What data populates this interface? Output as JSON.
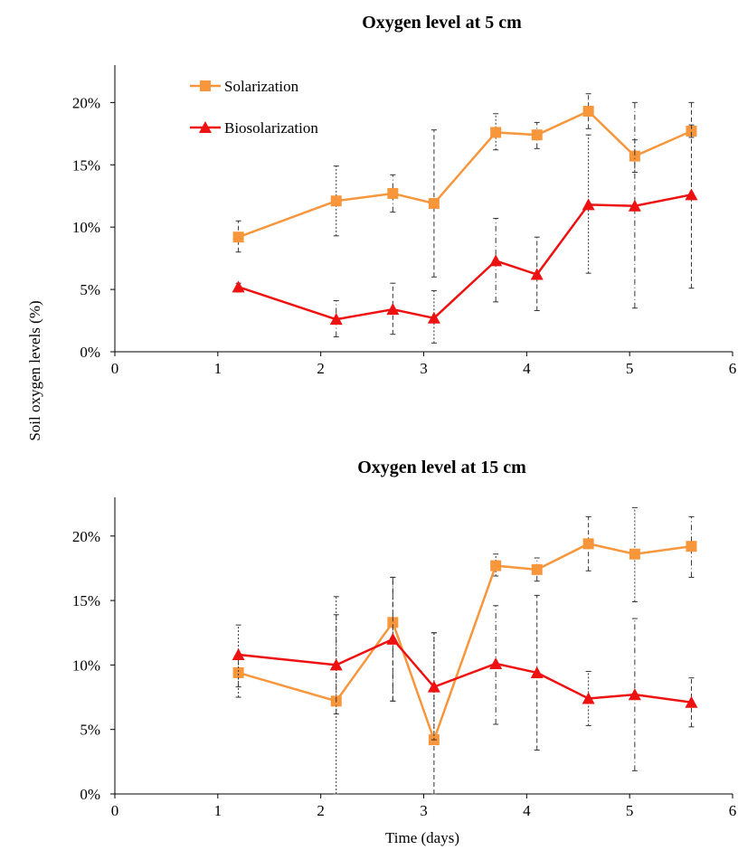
{
  "ylabel": "Soil oxygen levels (%)",
  "xlabel": "Time (days)",
  "legend": {
    "solarization": "Solarization",
    "biosolarization": "Biosolarization"
  },
  "colors": {
    "solarization": "#F7963B",
    "biosolarization": "#EE1111"
  },
  "chart_data": [
    {
      "type": "line",
      "title": "Oxygen level at 5 cm",
      "xlim": [
        0,
        6
      ],
      "ylim": [
        0,
        23
      ],
      "xticks": [
        "0",
        "1",
        "2",
        "3",
        "4",
        "5",
        "6"
      ],
      "yticks": [
        "0%",
        "5%",
        "10%",
        "15%",
        "20%"
      ],
      "legend_position": "top-left",
      "series": [
        {
          "name": "Solarization",
          "marker": "square",
          "x": [
            1.2,
            2.15,
            2.7,
            3.1,
            3.7,
            4.1,
            4.6,
            5.05,
            5.6
          ],
          "y": [
            9.2,
            12.1,
            12.7,
            11.9,
            17.6,
            17.4,
            19.3,
            15.7,
            17.7
          ],
          "err_low": [
            8.0,
            9.3,
            11.2,
            6.0,
            16.2,
            16.3,
            17.9,
            14.4,
            17.2
          ],
          "err_high": [
            10.5,
            14.9,
            14.2,
            17.8,
            19.1,
            18.4,
            20.7,
            17.0,
            18.2
          ]
        },
        {
          "name": "Biosolarization",
          "marker": "triangle",
          "x": [
            1.2,
            2.15,
            2.7,
            3.1,
            3.7,
            4.1,
            4.6,
            5.05,
            5.6
          ],
          "y": [
            5.2,
            2.6,
            3.4,
            2.7,
            7.3,
            6.2,
            11.8,
            11.7,
            12.6
          ],
          "err_low": [
            4.8,
            1.2,
            1.4,
            0.7,
            4.0,
            3.3,
            6.3,
            3.5,
            5.1
          ],
          "err_high": [
            5.5,
            4.1,
            5.5,
            4.9,
            10.7,
            9.2,
            17.4,
            20.0,
            20.0
          ]
        }
      ]
    },
    {
      "type": "line",
      "title": "Oxygen level at 15 cm",
      "xlim": [
        0,
        6
      ],
      "ylim": [
        0,
        23
      ],
      "xticks": [
        "0",
        "1",
        "2",
        "3",
        "4",
        "5",
        "6"
      ],
      "yticks": [
        "0%",
        "5%",
        "10%",
        "15%",
        "20%"
      ],
      "series": [
        {
          "name": "Solarization",
          "marker": "square",
          "x": [
            1.2,
            2.15,
            2.7,
            3.1,
            3.7,
            4.1,
            4.6,
            5.05,
            5.6
          ],
          "y": [
            9.4,
            7.2,
            13.3,
            4.2,
            17.7,
            17.4,
            19.4,
            18.6,
            19.2
          ],
          "err_low": [
            8.3,
            0,
            7.2,
            0,
            16.9,
            16.5,
            17.3,
            14.9,
            16.8
          ],
          "err_high": [
            10.5,
            15.3,
            16.8,
            12.5,
            18.6,
            18.3,
            21.5,
            22.2,
            21.5
          ]
        },
        {
          "name": "Biosolarization",
          "marker": "triangle",
          "x": [
            1.2,
            2.15,
            2.7,
            3.1,
            3.7,
            4.1,
            4.6,
            5.05,
            5.6
          ],
          "y": [
            10.8,
            10.0,
            12.0,
            8.3,
            10.1,
            9.4,
            7.4,
            7.7,
            7.1
          ],
          "err_low": [
            7.5,
            6.2,
            7.2,
            4.2,
            5.4,
            3.4,
            5.3,
            1.8,
            5.2
          ],
          "err_high": [
            13.1,
            13.9,
            16.8,
            12.5,
            14.6,
            15.4,
            9.5,
            13.6,
            9.0
          ]
        }
      ]
    }
  ]
}
